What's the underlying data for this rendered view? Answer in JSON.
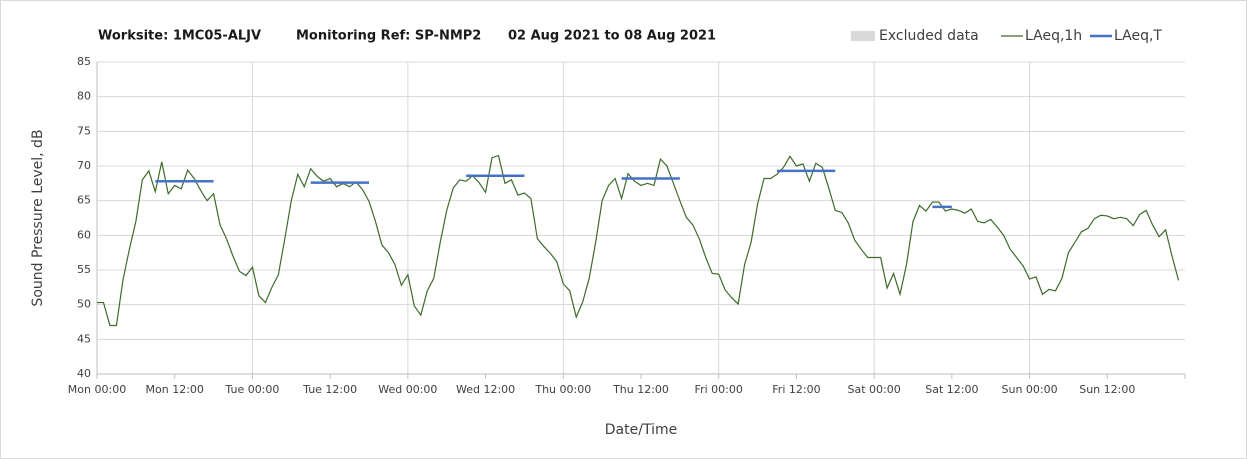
{
  "chart_data": {
    "type": "line",
    "title_parts": [
      "Worksite: 1MC05-ALJV",
      "Monitoring Ref: SP-NMP2",
      "02 Aug 2021 to 08 Aug 2021"
    ],
    "x_label": "Date/Time",
    "y_label": "Sound Pressure Level, dB",
    "xlim": [
      0,
      168
    ],
    "xticks": [
      {
        "value": 0,
        "label": "Mon 00:00"
      },
      {
        "value": 12,
        "label": "Mon 12:00"
      },
      {
        "value": 24,
        "label": "Tue 00:00"
      },
      {
        "value": 36,
        "label": "Tue 12:00"
      },
      {
        "value": 48,
        "label": "Wed 00:00"
      },
      {
        "value": 60,
        "label": "Wed 12:00"
      },
      {
        "value": 72,
        "label": "Thu 00:00"
      },
      {
        "value": 84,
        "label": "Thu 12:00"
      },
      {
        "value": 96,
        "label": "Fri 00:00"
      },
      {
        "value": 108,
        "label": "Fri 12:00"
      },
      {
        "value": 120,
        "label": "Sat 00:00"
      },
      {
        "value": 132,
        "label": "Sat 12:00"
      },
      {
        "value": 144,
        "label": "Sun 00:00"
      },
      {
        "value": 156,
        "label": "Sun 12:00"
      }
    ],
    "ylim": [
      40,
      85
    ],
    "yticks": [
      40,
      45,
      50,
      55,
      60,
      65,
      70,
      75,
      80,
      85
    ],
    "grid": true,
    "excluded_data": {
      "name": "Excluded data",
      "color": "#d9d9d9"
    },
    "series": [
      {
        "name": "LAeq,1h",
        "color": "#3d6b2a",
        "x": [
          0,
          1,
          2,
          3,
          4,
          5,
          6,
          7,
          8,
          9,
          10,
          11,
          12,
          13,
          14,
          15,
          16,
          17,
          18,
          19,
          20,
          21,
          22,
          23,
          24,
          25,
          26,
          27,
          28,
          29,
          30,
          31,
          32,
          33,
          34,
          35,
          36,
          37,
          38,
          39,
          40,
          41,
          42,
          43,
          44,
          45,
          46,
          47,
          48,
          49,
          50,
          51,
          52,
          53,
          54,
          55,
          56,
          57,
          58,
          59,
          60,
          61,
          62,
          63,
          64,
          65,
          66,
          67,
          68,
          69,
          70,
          71,
          72,
          73,
          74,
          75,
          76,
          77,
          78,
          79,
          80,
          81,
          82,
          83,
          84,
          85,
          86,
          87,
          88,
          89,
          90,
          91,
          92,
          93,
          94,
          95,
          96,
          97,
          98,
          99,
          100,
          101,
          102,
          103,
          104,
          105,
          106,
          107,
          108,
          109,
          110,
          111,
          112,
          113,
          114,
          115,
          116,
          117,
          118,
          119,
          120,
          121,
          122,
          123,
          124,
          125,
          126,
          127,
          128,
          129,
          130,
          131,
          132,
          133,
          134,
          135,
          136,
          137,
          138,
          139,
          140,
          141,
          142,
          143,
          144,
          145,
          146,
          147,
          148,
          149,
          150,
          151,
          152,
          153,
          154,
          155,
          156,
          157,
          158,
          159,
          160,
          161,
          162,
          163,
          164,
          165,
          166,
          167
        ],
        "values": [
          50.3,
          50.3,
          47,
          47,
          53.5,
          58,
          62,
          68,
          69.3,
          66.3,
          70.6,
          66,
          67.2,
          66.7,
          69.4,
          68.2,
          66.5,
          65,
          66,
          61.5,
          59.5,
          57,
          54.8,
          54.2,
          55.4,
          51.3,
          50.3,
          52.5,
          54.3,
          59.5,
          65,
          68.8,
          67,
          69.6,
          68.5,
          67.8,
          68.2,
          67,
          67.5,
          67,
          67.7,
          66.6,
          64.9,
          62,
          58.6,
          57.5,
          55.8,
          52.8,
          54.3,
          49.8,
          48.5,
          52,
          53.8,
          59,
          63.6,
          66.8,
          68,
          67.8,
          68.6,
          67.6,
          66.2,
          71.2,
          71.5,
          67.5,
          68,
          65.8,
          66.1,
          65.3,
          59.5,
          58.4,
          57.4,
          56.2,
          53,
          52,
          48.2,
          50.4,
          53.8,
          59,
          65,
          67.2,
          68.2,
          65.3,
          68.9,
          67.8,
          67.2,
          67.5,
          67.2,
          71,
          70,
          67.5,
          65,
          62.6,
          61.5,
          59.5,
          56.8,
          54.5,
          54.4,
          52.1,
          51,
          50.1,
          55.8,
          59,
          64.5,
          68.2,
          68.2,
          68.8,
          69.8,
          71.4,
          70,
          70.3,
          67.8,
          70.4,
          69.8,
          66.8,
          63.6,
          63.3,
          61.8,
          59.3,
          58,
          56.8,
          56.8,
          56.8,
          52.4,
          54.5,
          51.5,
          55.8,
          62,
          64.3,
          63.5,
          64.8,
          64.8,
          63.5,
          63.8,
          63.6,
          63.2,
          63.8,
          62,
          61.8,
          62.3,
          61.2,
          60,
          58,
          56.8,
          55.6,
          53.7,
          54,
          51.5,
          52.2,
          52,
          53.8,
          57.5,
          59,
          60.5,
          61,
          62.4,
          62.9,
          62.8,
          62.4,
          62.6,
          62.4,
          61.4,
          63,
          63.6,
          61.5,
          59.8,
          60.8,
          57,
          53.5
        ]
      },
      {
        "name": "LAeq,T",
        "color": "#4472c4",
        "x": [
          9,
          18,
          18,
          33,
          42,
          42,
          57,
          66,
          66,
          81,
          90,
          90,
          105,
          114,
          114,
          129,
          132
        ],
        "values": [
          67.8,
          67.8,
          null,
          67.6,
          67.6,
          null,
          68.6,
          68.6,
          null,
          68.2,
          68.2,
          null,
          69.3,
          69.3,
          null,
          64.1,
          64.1
        ]
      }
    ]
  }
}
